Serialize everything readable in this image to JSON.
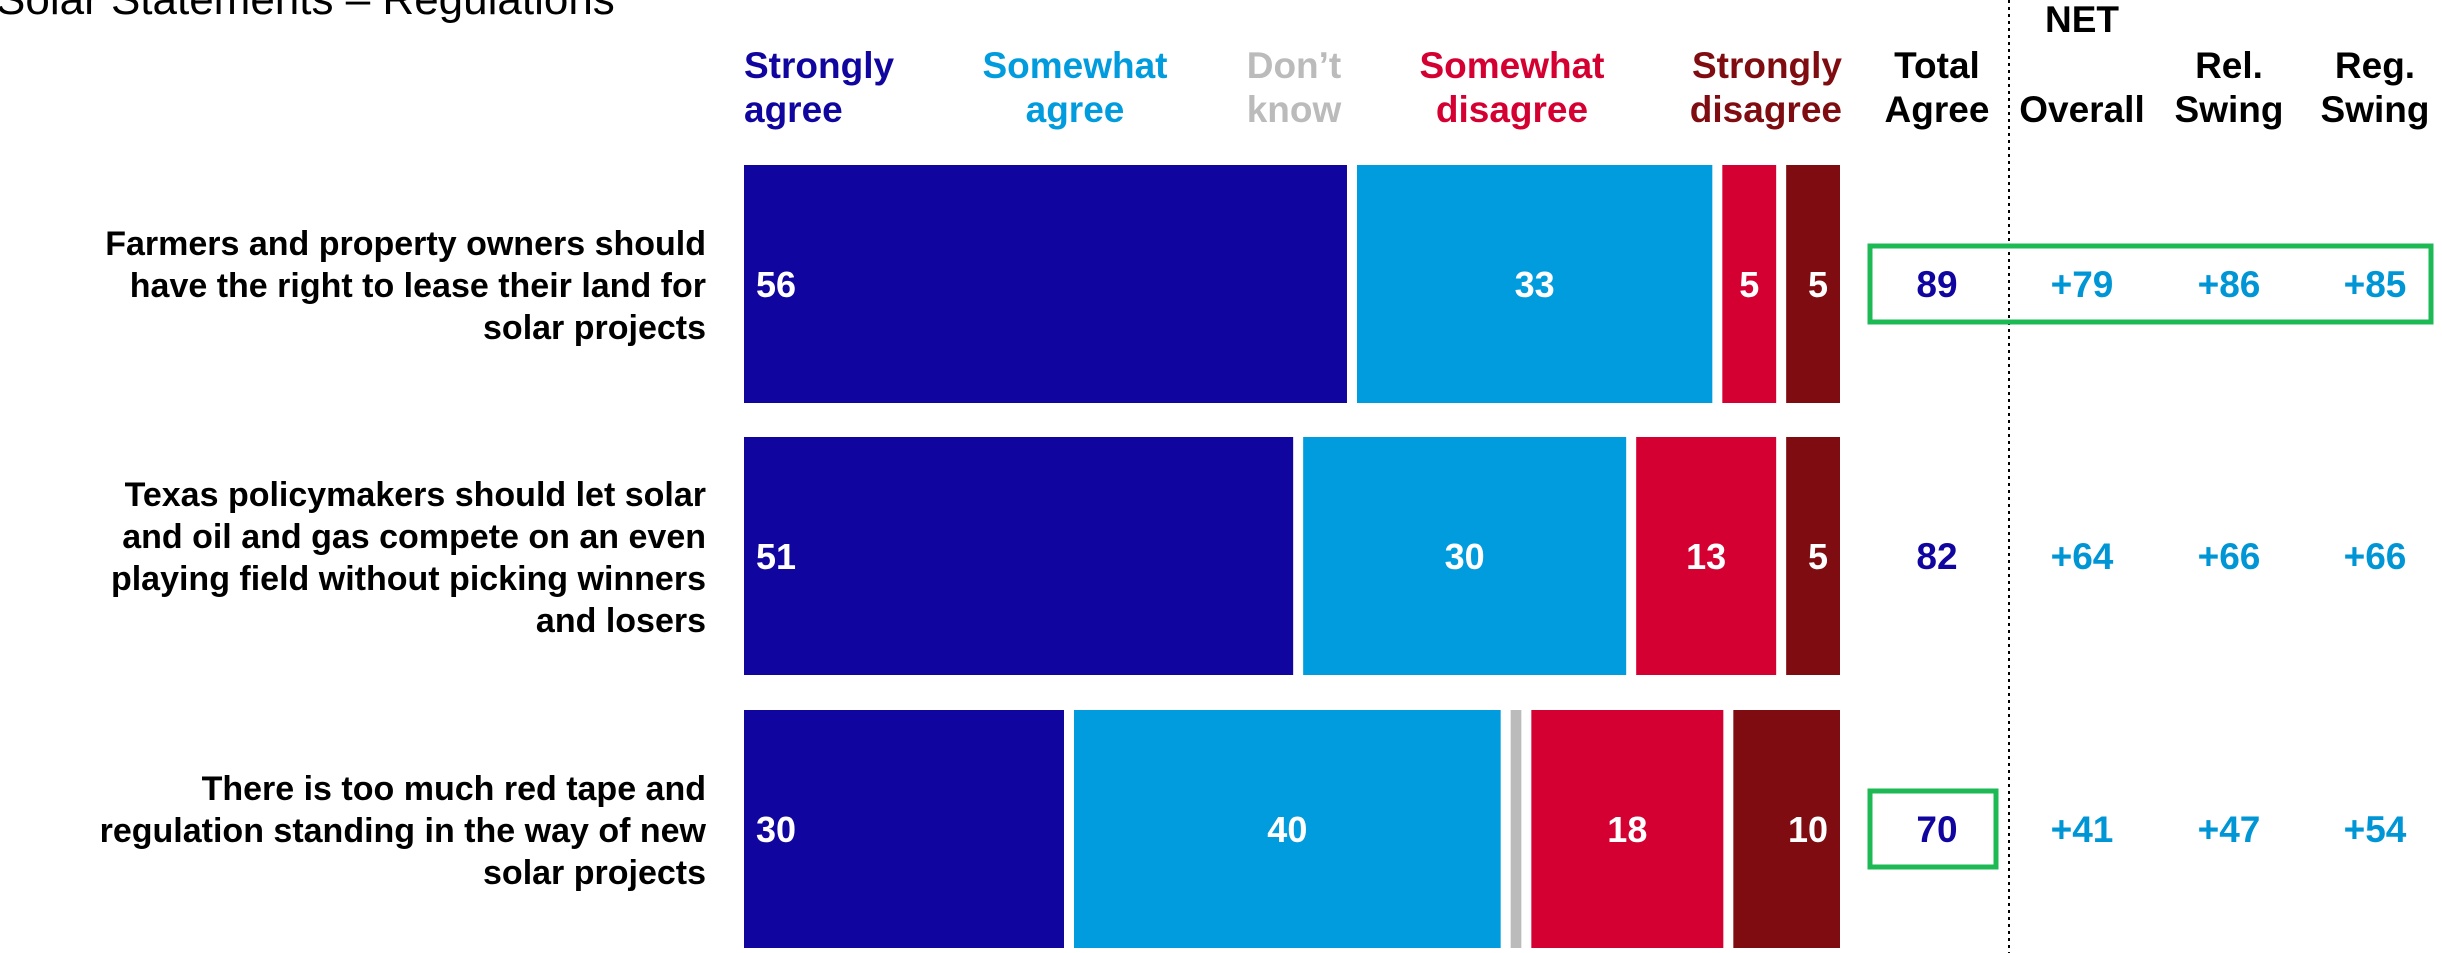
{
  "title": "Solar Statements – Regulations",
  "colors": {
    "strongly_agree": "#10069F",
    "somewhat_agree": "#009CDE",
    "dont_know": "#BBBBBB",
    "somewhat_disagree": "#D50032",
    "strongly_disagree": "#7F0C10",
    "highlight": "#1DB954",
    "total": "#10069F",
    "net": "#0096D6",
    "text": "#000000"
  },
  "headers": {
    "categories": [
      {
        "key": "strongly_agree",
        "lines": [
          "Strongly",
          "agree"
        ]
      },
      {
        "key": "somewhat_agree",
        "lines": [
          "Somewhat",
          "agree"
        ]
      },
      {
        "key": "dont_know",
        "lines": [
          "Don’t",
          "know"
        ]
      },
      {
        "key": "somewhat_disagree",
        "lines": [
          "Somewhat",
          "disagree"
        ]
      },
      {
        "key": "strongly_disagree",
        "lines": [
          "Strongly",
          "disagree"
        ]
      }
    ],
    "total": [
      "Total",
      "Agree"
    ],
    "net_group": "NET",
    "net_columns": [
      [
        "",
        "Overall"
      ],
      [
        "Rel.",
        "Swing"
      ],
      [
        "Reg.",
        "Swing"
      ]
    ]
  },
  "chart_data": {
    "type": "bar",
    "orientation": "horizontal",
    "stacked": true,
    "categories": [
      [
        "Farmers and property owners should",
        "have the right to lease their land for",
        "solar projects"
      ],
      [
        "Texas policymakers should let solar",
        "and oil and gas compete on an even",
        "playing field without picking winners",
        "and losers"
      ],
      [
        "There is too much red tape and",
        "regulation standing in the way of new",
        "solar projects"
      ]
    ],
    "series": [
      {
        "name": "Strongly agree",
        "key": "strongly_agree",
        "values": [
          56,
          51,
          30
        ]
      },
      {
        "name": "Somewhat agree",
        "key": "somewhat_agree",
        "values": [
          33,
          30,
          40
        ]
      },
      {
        "name": "Don’t know",
        "key": "dont_know",
        "values": [
          0,
          0,
          1
        ]
      },
      {
        "name": "Somewhat disagree",
        "key": "somewhat_disagree",
        "values": [
          5,
          13,
          18
        ]
      },
      {
        "name": "Strongly disagree",
        "key": "strongly_disagree",
        "values": [
          5,
          5,
          10
        ]
      }
    ],
    "value_labels": [
      [
        "56",
        "33",
        "",
        "5",
        "5"
      ],
      [
        "51",
        "30",
        "",
        "13",
        "5"
      ],
      [
        "30",
        "40",
        "",
        "18",
        "10"
      ]
    ],
    "total_agree": [
      "89",
      "82",
      "70"
    ],
    "net": [
      [
        "+79",
        "+86",
        "+85"
      ],
      [
        "+64",
        "+66",
        "+66"
      ],
      [
        "+41",
        "+47",
        "+54"
      ]
    ],
    "highlights": {
      "full_row": [
        0
      ],
      "total_only": [
        2
      ]
    },
    "legend": "top",
    "grid": false
  }
}
